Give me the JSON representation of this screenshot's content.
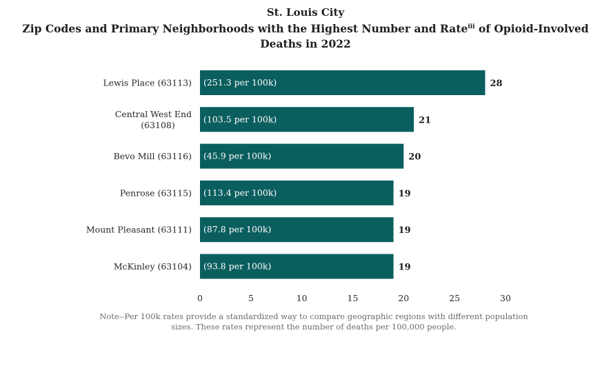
{
  "title_line1": "St. Louis City",
  "title_line2_pre": "Zip Codes and Primary Neighborhoods with the Highest Number and Rate",
  "title_line2_sup": "iii",
  "title_line2_post": " of Opioid-Involved Deaths in 2022",
  "note": "Note--Per 100k rates provide a standardized way to compare geographic regions with different population sizes. These rates represent the number of deaths per 100,000 people.",
  "chart_data": {
    "type": "bar",
    "orientation": "horizontal",
    "bar_color": "#0b5e5e",
    "xlim": [
      0,
      30
    ],
    "xticks": [
      "0",
      "5",
      "10",
      "15",
      "20",
      "25",
      "30"
    ],
    "categories": [
      [
        "Lewis Place (63113)"
      ],
      [
        "Central West End",
        "(63108)"
      ],
      [
        "Bevo Mill (63116)"
      ],
      [
        "Penrose (63115)"
      ],
      [
        "Mount Pleasant (63111)"
      ],
      [
        "McKinley (63104)"
      ]
    ],
    "values": [
      28,
      21,
      20,
      19,
      19,
      19
    ],
    "value_labels": [
      "28",
      "21",
      "20",
      "19",
      "19",
      "19"
    ],
    "rate_labels": [
      "(251.3 per 100k)",
      "(103.5 per 100k)",
      "(45.9 per 100k)",
      "(113.4 per 100k)",
      "(87.8 per 100k)",
      "(93.8 per 100k)"
    ]
  }
}
